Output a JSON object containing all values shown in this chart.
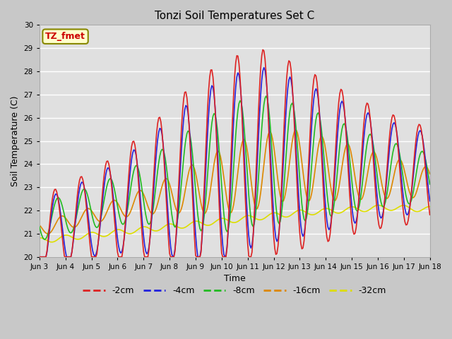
{
  "title": "Tonzi Soil Temperatures Set C",
  "xlabel": "Time",
  "ylabel": "Soil Temperature (C)",
  "ylim": [
    20.0,
    30.0
  ],
  "yticks": [
    20.0,
    21.0,
    22.0,
    23.0,
    24.0,
    25.0,
    26.0,
    27.0,
    28.0,
    29.0,
    30.0
  ],
  "annotation_text": "TZ_fmet",
  "annotation_color": "#cc0000",
  "annotation_bg": "#ffffcc",
  "annotation_border": "#888800",
  "fig_facecolor": "#c8c8c8",
  "plot_facecolor": "#e0e0e0",
  "line_colors": {
    "-2cm": "#dd2222",
    "-4cm": "#2222dd",
    "-8cm": "#22bb22",
    "-16cm": "#dd8800",
    "-32cm": "#dddd00"
  },
  "x_tick_labels": [
    "Jun 3",
    "Jun 4",
    "Jun 5",
    "Jun 6",
    "Jun 7",
    "Jun 8",
    "Jun 9",
    "Jun 10",
    "Jun 11",
    "Jun 12",
    "Jun 13",
    "Jun 14",
    "Jun 15",
    "Jun 16",
    "Jun 17",
    "Jun 18"
  ]
}
